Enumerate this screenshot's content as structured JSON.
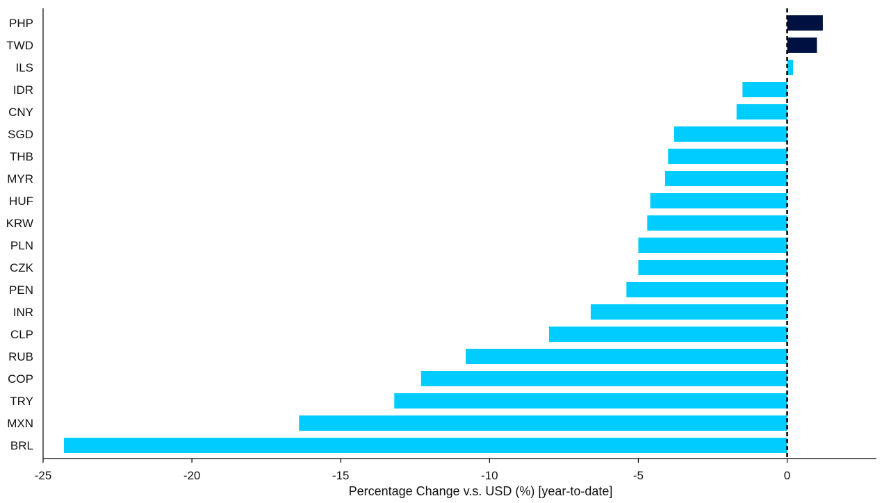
{
  "colors": {
    "positive": "#001141",
    "negative": "#00CCFF",
    "axis": "#000000",
    "zero_line": "#000000"
  },
  "chart_data": {
    "type": "bar",
    "orientation": "horizontal",
    "title": "",
    "xlabel": "Percentage Change v.s. USD (%) [year-to-date]",
    "ylabel": "",
    "xlim": [
      -25,
      3
    ],
    "xticks": [
      -25,
      -20,
      -15,
      -10,
      -5,
      0
    ],
    "xtick_labels": [
      "-25",
      "-20",
      "-15",
      "-10",
      "-5",
      "0"
    ],
    "grid": false,
    "zero_line": "dashed",
    "categories": [
      "PHP",
      "TWD",
      "ILS",
      "IDR",
      "CNY",
      "SGD",
      "THB",
      "MYR",
      "HUF",
      "KRW",
      "PLN",
      "CZK",
      "PEN",
      "INR",
      "CLP",
      "RUB",
      "COP",
      "TRY",
      "MXN",
      "BRL"
    ],
    "values": [
      1.2,
      1.0,
      0.2,
      -1.5,
      -1.7,
      -3.8,
      -4.0,
      -4.1,
      -4.6,
      -4.7,
      -5.0,
      -5.0,
      -5.4,
      -6.6,
      -8.0,
      -10.8,
      -12.3,
      -13.2,
      -16.4,
      -24.3
    ]
  }
}
